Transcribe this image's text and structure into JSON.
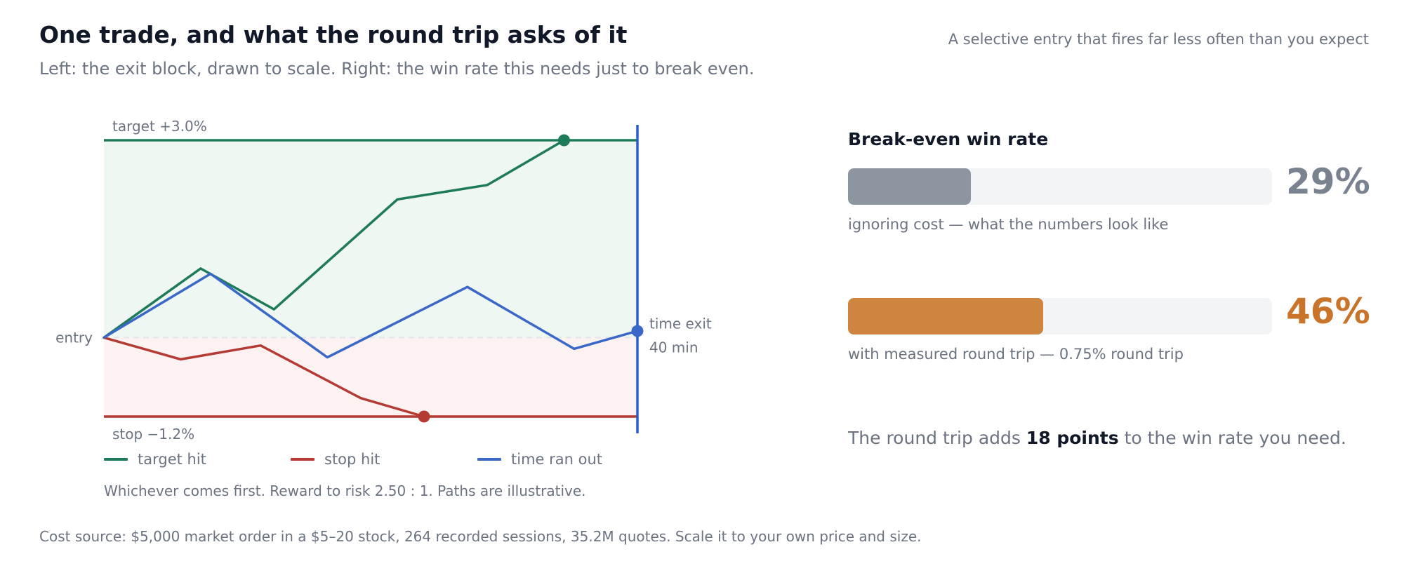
{
  "header": {
    "title": "One trade, and what the round trip asks of it",
    "subtitle": "Left: the exit block, drawn to scale. Right: the win rate this needs just to break even.",
    "tagline": "A selective entry that fires far less often than you expect"
  },
  "chart_data": {
    "type": "line",
    "title": "",
    "xlabel": "",
    "ylabel": "",
    "x": [
      0,
      1,
      2,
      3,
      4,
      5,
      6,
      7,
      8
    ],
    "x_range": [
      0,
      8
    ],
    "ylim": [
      -1.2,
      3.0
    ],
    "y_unit": "%",
    "target": {
      "label": "target +3.0%",
      "value": 3.0,
      "color": "#1e7b5a"
    },
    "stop": {
      "label": "stop −1.2%",
      "value": -1.2,
      "color": "#b43a34"
    },
    "entry": {
      "label": "entry",
      "value": 0
    },
    "time_exit": {
      "label_line1": "time exit",
      "label_line2": "40 min",
      "x": 8,
      "color": "#2c5cc5"
    },
    "series": [
      {
        "name": "target hit",
        "color": "#1e7b5a",
        "x": [
          0,
          1.45,
          2.55,
          4.4,
          5.75,
          6.9
        ],
        "values": [
          0,
          1.05,
          0.43,
          2.1,
          2.32,
          3.0
        ]
      },
      {
        "name": "stop hit",
        "color": "#b43a34",
        "x": [
          0,
          1.15,
          2.35,
          3.85,
          4.8
        ],
        "values": [
          0,
          -0.33,
          -0.12,
          -0.92,
          -1.2
        ]
      },
      {
        "name": "time ran out",
        "color": "#3a68c8",
        "x": [
          0,
          1.6,
          3.35,
          5.45,
          7.05,
          8.0
        ],
        "values": [
          0,
          0.97,
          -0.3,
          0.77,
          -0.17,
          0.1
        ]
      }
    ],
    "note": "Whichever comes first. Reward to risk 2.50 : 1. Paths are illustrative."
  },
  "breakeven": {
    "title": "Break-even win rate",
    "bars": [
      {
        "value": 0.29,
        "display": "29%",
        "caption": "ignoring cost — what the numbers look like",
        "color": "#8c95a0",
        "text_color": "#7a828f"
      },
      {
        "value": 0.46,
        "display": "46%",
        "caption": "with measured round trip — 0.75% round trip",
        "color": "#cd853f",
        "text_color": "#c8742a"
      }
    ],
    "summary_pre": "The round trip adds ",
    "summary_bold": "18 points",
    "summary_post": " to the win rate you need."
  },
  "footer": "Cost source: $5,000 market order in a $5–20 stock, 264 recorded sessions, 35.2M quotes. Scale it to your own price and size."
}
